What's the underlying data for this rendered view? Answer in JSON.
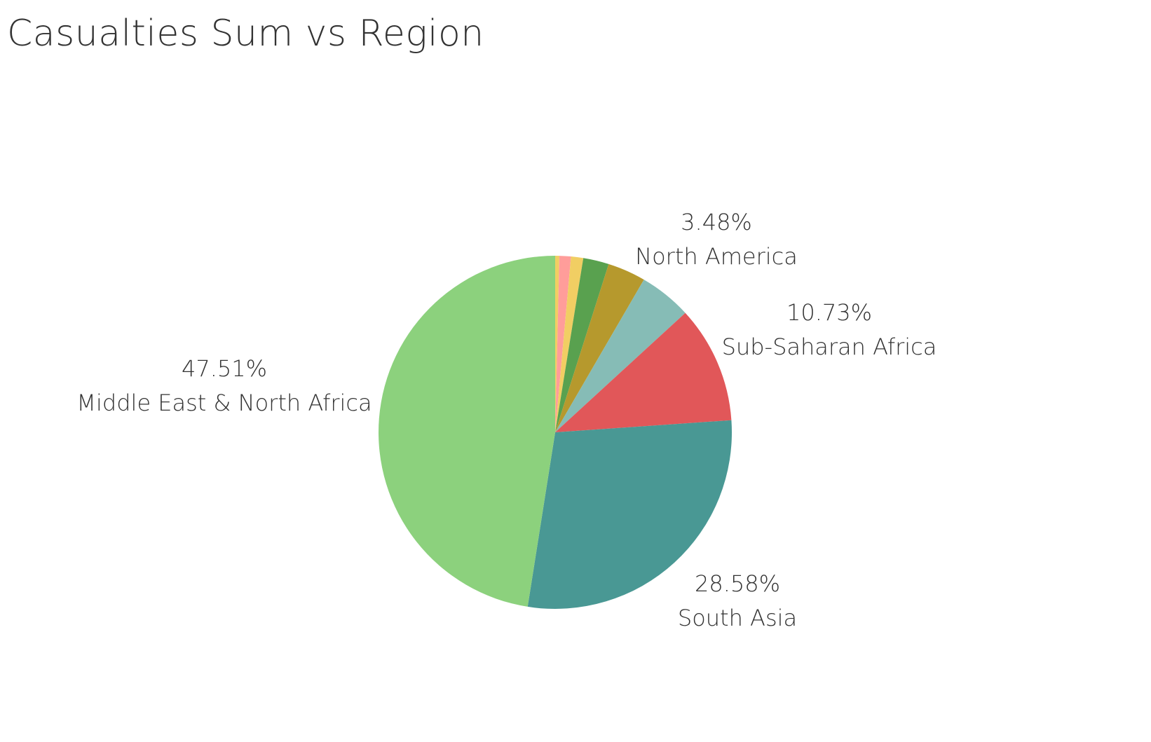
{
  "chart_data": {
    "type": "pie",
    "title": "Casualties Sum vs Region",
    "slices": [
      {
        "label": "",
        "value": 0.38,
        "color": "#f1ce63",
        "label_text": "",
        "pct_text": ""
      },
      {
        "label": "",
        "value": 1.05,
        "color": "#ff9d9a",
        "label_text": "",
        "pct_text": ""
      },
      {
        "label": "",
        "value": 1.12,
        "color": "#f1ce63",
        "label_text": "",
        "pct_text": ""
      },
      {
        "label": "",
        "value": 2.35,
        "color": "#59a14f",
        "label_text": "",
        "pct_text": ""
      },
      {
        "label": "North America",
        "value": 3.48,
        "color": "#b6992d",
        "label_text": "North America",
        "pct_text": "3.48%"
      },
      {
        "label": "",
        "value": 4.8,
        "color": "#86bcb6",
        "label_text": "",
        "pct_text": ""
      },
      {
        "label": "Sub-Saharan Africa",
        "value": 10.73,
        "color": "#e15759",
        "label_text": "Sub-Saharan Africa",
        "pct_text": "10.73%"
      },
      {
        "label": "South Asia",
        "value": 28.58,
        "color": "#499894",
        "label_text": "South Asia",
        "pct_text": "28.58%"
      },
      {
        "label": "Middle East & North Africa",
        "value": 47.51,
        "color": "#8cd17d",
        "label_text": "Middle East & North Africa",
        "pct_text": "47.51%"
      }
    ]
  }
}
